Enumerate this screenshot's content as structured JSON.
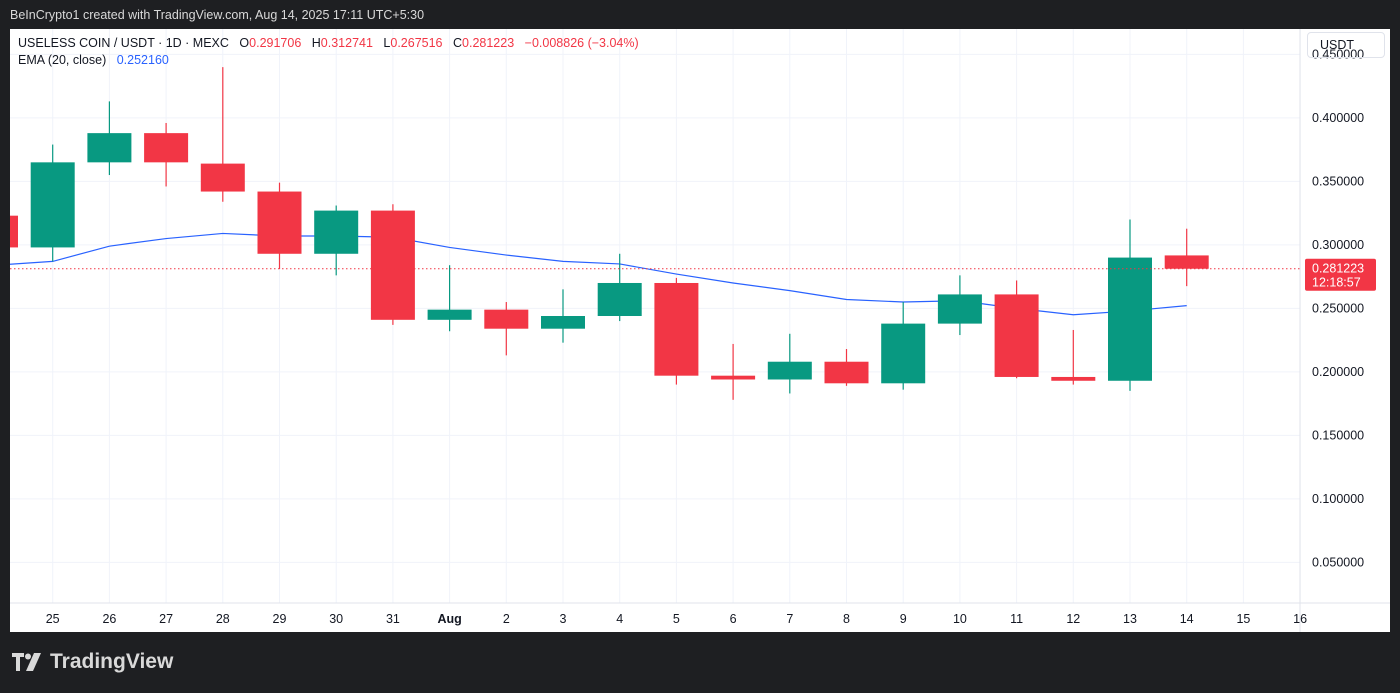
{
  "credit": "BeInCrypto1 created with TradingView.com, Aug 14, 2025 17:11 UTC+5:30",
  "legend": {
    "symbol": "USELESS COIN / USDT · 1D · MEXC",
    "o_label": "O",
    "o_value": "0.291706",
    "h_label": "H",
    "h_value": "0.312741",
    "l_label": "L",
    "l_value": "0.267516",
    "c_label": "C",
    "c_value": "0.281223",
    "change": "−0.008826 (−3.04%)",
    "ema_label": "EMA (20, close)",
    "ema_value": "0.252160"
  },
  "currency": "USDT",
  "price_label": {
    "price": "0.281223",
    "countdown": "12:18:57"
  },
  "logo_text": "TradingView",
  "colors": {
    "up": "#089981",
    "down": "#f23645",
    "ema": "#2962ff",
    "grid": "#f0f3fa",
    "text": "#131722"
  },
  "chart_data": {
    "type": "candlestick",
    "title": "USELESS COIN / USDT · 1D · MEXC",
    "y_ticks": [
      "0.050000",
      "0.100000",
      "0.150000",
      "0.200000",
      "0.250000",
      "0.300000",
      "0.350000",
      "0.400000",
      "0.450000"
    ],
    "x_ticks": [
      "25",
      "26",
      "27",
      "28",
      "29",
      "30",
      "31",
      "Aug",
      "2",
      "3",
      "4",
      "5",
      "6",
      "7",
      "8",
      "9",
      "10",
      "11",
      "12",
      "13",
      "14",
      "15",
      "16"
    ],
    "ylim": [
      0.018,
      0.47
    ],
    "grid": true,
    "candles": [
      {
        "date": "Jul 24",
        "open": 0.323,
        "high": 0.323,
        "low": 0.298,
        "close": 0.298
      },
      {
        "date": "Jul 25",
        "open": 0.298,
        "high": 0.379,
        "low": 0.287,
        "close": 0.365
      },
      {
        "date": "Jul 26",
        "open": 0.365,
        "high": 0.413,
        "low": 0.355,
        "close": 0.388
      },
      {
        "date": "Jul 27",
        "open": 0.388,
        "high": 0.396,
        "low": 0.346,
        "close": 0.365
      },
      {
        "date": "Jul 28",
        "open": 0.364,
        "high": 0.44,
        "low": 0.334,
        "close": 0.342
      },
      {
        "date": "Jul 29",
        "open": 0.342,
        "high": 0.349,
        "low": 0.281,
        "close": 0.293
      },
      {
        "date": "Jul 30",
        "open": 0.293,
        "high": 0.331,
        "low": 0.276,
        "close": 0.327
      },
      {
        "date": "Jul 31",
        "open": 0.327,
        "high": 0.332,
        "low": 0.237,
        "close": 0.241
      },
      {
        "date": "Aug 1",
        "open": 0.241,
        "high": 0.284,
        "low": 0.232,
        "close": 0.249
      },
      {
        "date": "Aug 2",
        "open": 0.249,
        "high": 0.255,
        "low": 0.213,
        "close": 0.234
      },
      {
        "date": "Aug 3",
        "open": 0.234,
        "high": 0.265,
        "low": 0.223,
        "close": 0.244
      },
      {
        "date": "Aug 4",
        "open": 0.244,
        "high": 0.293,
        "low": 0.24,
        "close": 0.27
      },
      {
        "date": "Aug 5",
        "open": 0.27,
        "high": 0.274,
        "low": 0.19,
        "close": 0.197
      },
      {
        "date": "Aug 6",
        "open": 0.197,
        "high": 0.222,
        "low": 0.178,
        "close": 0.194
      },
      {
        "date": "Aug 7",
        "open": 0.194,
        "high": 0.23,
        "low": 0.183,
        "close": 0.208
      },
      {
        "date": "Aug 8",
        "open": 0.208,
        "high": 0.218,
        "low": 0.189,
        "close": 0.191
      },
      {
        "date": "Aug 9",
        "open": 0.191,
        "high": 0.255,
        "low": 0.186,
        "close": 0.238
      },
      {
        "date": "Aug 10",
        "open": 0.238,
        "high": 0.276,
        "low": 0.229,
        "close": 0.261
      },
      {
        "date": "Aug 11",
        "open": 0.261,
        "high": 0.272,
        "low": 0.195,
        "close": 0.196
      },
      {
        "date": "Aug 12",
        "open": 0.196,
        "high": 0.233,
        "low": 0.19,
        "close": 0.193
      },
      {
        "date": "Aug 13",
        "open": 0.193,
        "high": 0.32,
        "low": 0.185,
        "close": 0.29
      },
      {
        "date": "Aug 14",
        "open": 0.291706,
        "high": 0.312741,
        "low": 0.267516,
        "close": 0.281223
      }
    ],
    "ema": [
      0.284,
      0.287,
      0.299,
      0.305,
      0.309,
      0.307,
      0.307,
      0.306,
      0.298,
      0.292,
      0.287,
      0.285,
      0.277,
      0.27,
      0.264,
      0.257,
      0.255,
      0.256,
      0.25,
      0.245,
      0.248,
      0.25216
    ],
    "last_price": 0.281223
  }
}
